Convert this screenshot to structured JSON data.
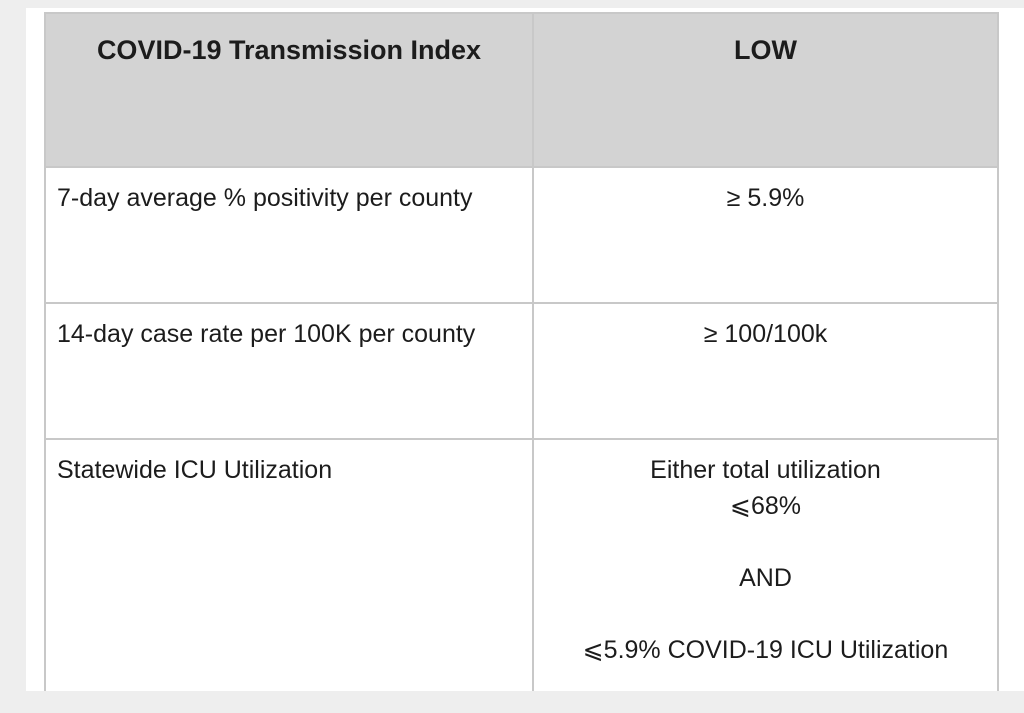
{
  "table": {
    "header": {
      "metric": "COVID-19 Transmission Index",
      "level": "LOW"
    },
    "rows": [
      {
        "metric": "7-day average % positivity per county",
        "value": "≥ 5.9%"
      },
      {
        "metric": "14-day case rate per 100K per county",
        "value": "≥ 100/100k"
      },
      {
        "metric": "Statewide ICU Utilization",
        "value_lines": [
          "Either total utilization",
          "⩽68%",
          "AND",
          "⩽5.9% COVID-19 ICU Utilization"
        ]
      }
    ]
  }
}
